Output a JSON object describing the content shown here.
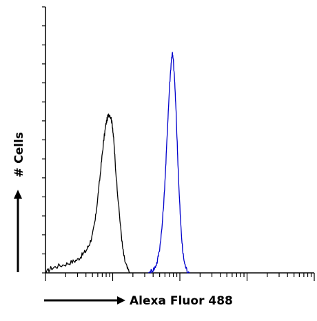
{
  "chart_data": {
    "type": "line",
    "title": "",
    "xlabel": "Alexa Fluor 488",
    "ylabel": "# Cells",
    "x_scale": "log",
    "xlim": [
      1,
      10000
    ],
    "ylim": [
      0,
      100
    ],
    "grid": false,
    "legend": "none",
    "series": [
      {
        "color": "#000000",
        "points": [
          [
            1.0,
            0
          ],
          [
            1.2,
            2
          ],
          [
            1.5,
            3
          ],
          [
            2.0,
            4
          ],
          [
            2.5,
            5
          ],
          [
            3.0,
            6
          ],
          [
            3.5,
            8
          ],
          [
            4.0,
            10
          ],
          [
            4.5,
            13
          ],
          [
            5.0,
            17
          ],
          [
            5.5,
            24
          ],
          [
            6.0,
            34
          ],
          [
            6.5,
            44
          ],
          [
            7.0,
            54
          ],
          [
            7.5,
            62
          ],
          [
            8.0,
            68
          ],
          [
            8.5,
            71
          ],
          [
            9.0,
            72
          ],
          [
            9.5,
            70
          ],
          [
            10.0,
            66
          ],
          [
            10.5,
            58
          ],
          [
            11.0,
            48
          ],
          [
            12.0,
            34
          ],
          [
            13.0,
            22
          ],
          [
            14.0,
            12
          ],
          [
            15.0,
            6
          ],
          [
            16.5,
            2
          ],
          [
            18.0,
            0
          ]
        ]
      },
      {
        "color": "#0000cc",
        "points": [
          [
            34,
            0
          ],
          [
            38,
            1
          ],
          [
            42,
            2
          ],
          [
            46,
            5
          ],
          [
            50,
            11
          ],
          [
            54,
            20
          ],
          [
            58,
            33
          ],
          [
            62,
            50
          ],
          [
            66,
            68
          ],
          [
            70,
            84
          ],
          [
            74,
            95
          ],
          [
            77,
            100
          ],
          [
            80,
            96
          ],
          [
            84,
            86
          ],
          [
            88,
            72
          ],
          [
            92,
            56
          ],
          [
            97,
            38
          ],
          [
            103,
            22
          ],
          [
            110,
            10
          ],
          [
            118,
            4
          ],
          [
            128,
            1
          ],
          [
            140,
            0
          ]
        ]
      }
    ]
  }
}
